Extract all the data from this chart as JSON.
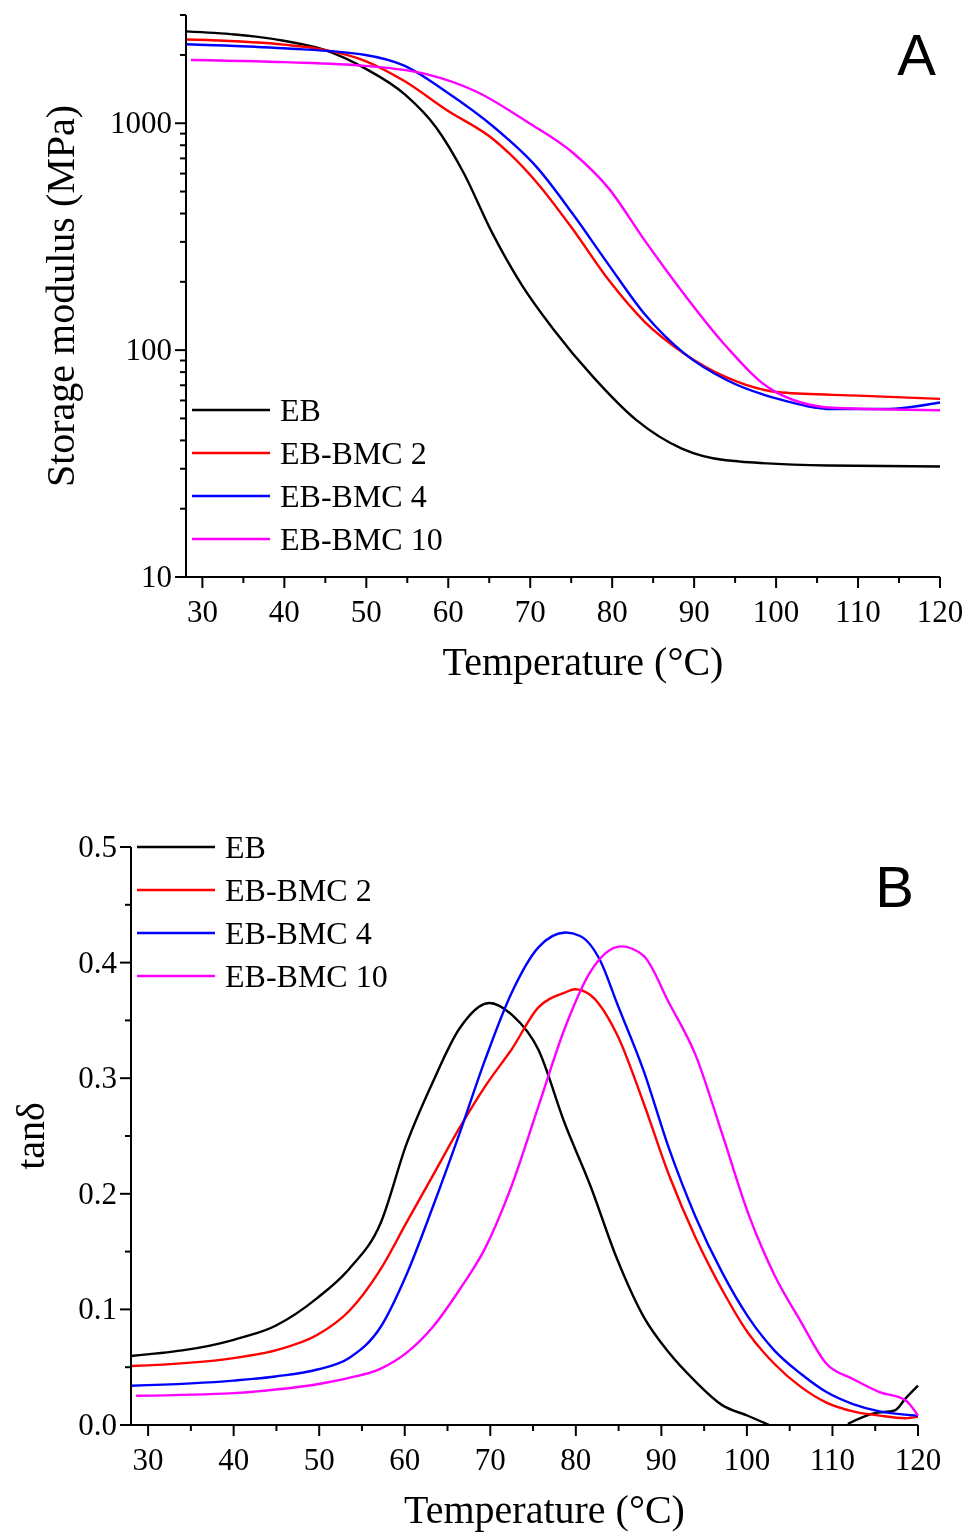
{
  "chart_data": [
    {
      "type": "line",
      "xlabel": "Temperature (°C)",
      "ylabel": "Storage modulus (MPa)",
      "annotations": [
        "A"
      ],
      "log": "y",
      "legend": "bottom left",
      "xlim": [
        28,
        120
      ],
      "ylim": [
        10,
        3000
      ],
      "xticks": [
        30,
        {
          "value": 35,
          "label": null
        },
        40,
        {
          "value": 45,
          "label": null
        },
        50,
        {
          "value": 55,
          "label": null
        },
        60,
        {
          "value": 65,
          "label": null
        },
        70,
        {
          "value": 75,
          "label": null
        },
        80,
        {
          "value": 85,
          "label": null
        },
        90,
        {
          "value": 95,
          "label": null
        },
        100,
        {
          "value": 105,
          "label": null
        },
        110,
        {
          "value": 115,
          "label": null
        },
        120
      ],
      "yticks": [
        10,
        {
          "value": 20,
          "label": null
        },
        {
          "value": 30,
          "label": null
        },
        {
          "value": 40,
          "label": null
        },
        {
          "value": 50,
          "label": null
        },
        {
          "value": 60,
          "label": null
        },
        {
          "value": 70,
          "label": null
        },
        {
          "value": 80,
          "label": null
        },
        {
          "value": 90,
          "label": null
        },
        100,
        {
          "value": 200,
          "label": null
        },
        {
          "value": 300,
          "label": null
        },
        {
          "value": 400,
          "label": null
        },
        {
          "value": 500,
          "label": null
        },
        {
          "value": 600,
          "label": null
        },
        {
          "value": 700,
          "label": null
        },
        {
          "value": 800,
          "label": null
        },
        {
          "value": 900,
          "label": null
        },
        1000,
        {
          "value": 2000,
          "label": null
        },
        {
          "value": 3000,
          "label": null
        }
      ],
      "series": [
        {
          "name": "EB",
          "color": "#000000",
          "x": [
            28,
            39.9,
            44.8,
            49.9,
            54.7,
            58.5,
            61.9,
            65.3,
            69,
            72.8,
            77.7,
            83,
            88.5,
            93.9,
            106.3,
            120
          ],
          "values": [
            2540,
            2310,
            2110,
            1740,
            1340,
            960,
            602,
            332,
            193,
            124,
            76,
            49,
            36.8,
            32.7,
            31,
            30.7
          ]
        },
        {
          "name": "EB-BMC 2",
          "color": "#ff0000",
          "x": [
            28,
            39.9,
            44.8,
            49.9,
            54.7,
            59.7,
            65.6,
            70.9,
            75.2,
            79.6,
            83.9,
            88.9,
            93.9,
            100.7,
            110,
            120
          ],
          "values": [
            2340,
            2220,
            2110,
            1880,
            1530,
            1150,
            844,
            543,
            341,
            203,
            134,
            96,
            76,
            65,
            63,
            61
          ]
        },
        {
          "name": "EB-BMC 4",
          "color": "#0000ff",
          "x": [
            28,
            39.9,
            49.9,
            54.7,
            59.7,
            65.6,
            70.9,
            75.2,
            79.6,
            83.9,
            88.9,
            93.9,
            100.7,
            106.9,
            113.2,
            120
          ],
          "values": [
            2230,
            2140,
            2000,
            1790,
            1380,
            960,
            634,
            398,
            237,
            145,
            96,
            74,
            60.3,
            55,
            55,
            58.8
          ]
        },
        {
          "name": "EB-BMC 10",
          "color": "#ff00ff",
          "x": [
            28.6,
            39.9,
            49.9,
            57.2,
            63.4,
            69.7,
            75.2,
            79.6,
            83.9,
            88.9,
            93.9,
            99.5,
            106.9,
            120
          ],
          "values": [
            1900,
            1860,
            1790,
            1650,
            1380,
            1010,
            741,
            515,
            307,
            174,
            104,
            66.8,
            55.7,
            54.3
          ]
        }
      ]
    },
    {
      "type": "line",
      "xlabel": "Temperature (°C)",
      "ylabel": "tanδ",
      "annotations": [
        "B"
      ],
      "legend": "top left",
      "xlim": [
        28,
        120
      ],
      "ylim": [
        0,
        0.5
      ],
      "xticks": [
        30,
        {
          "value": 35,
          "label": null
        },
        40,
        {
          "value": 45,
          "label": null
        },
        50,
        {
          "value": 55,
          "label": null
        },
        60,
        {
          "value": 65,
          "label": null
        },
        70,
        {
          "value": 75,
          "label": null
        },
        80,
        {
          "value": 85,
          "label": null
        },
        90,
        {
          "value": 95,
          "label": null
        },
        100,
        {
          "value": 105,
          "label": null
        },
        110,
        {
          "value": 115,
          "label": null
        },
        120
      ],
      "yticks": [
        {
          "value": 0,
          "label": "0.0"
        },
        {
          "value": 0.05,
          "label": null
        },
        0.1,
        {
          "value": 0.15,
          "label": null
        },
        0.2,
        {
          "value": 0.25,
          "label": null
        },
        0.3,
        {
          "value": 0.35,
          "label": null
        },
        0.4,
        {
          "value": 0.45,
          "label": null
        },
        0.5
      ],
      "series": [
        {
          "name": "EB",
          "color": "#000000",
          "x": [
            28,
            40,
            44.9,
            49.8,
            53.5,
            57.2,
            60.2,
            63.3,
            66.4,
            69.9,
            72.5,
            75.6,
            78.7,
            81.7,
            84.8,
            87.9,
            90.9,
            94,
            97.1,
            100.1,
            102.6,
            106,
            111.8,
            114.8,
            117.3,
            118.5,
            120
          ],
          "values": [
            0.0597,
            0.0737,
            0.0859,
            0.11,
            0.135,
            0.175,
            0.243,
            0.297,
            0.343,
            0.365,
            0.355,
            0.325,
            0.261,
            0.207,
            0.144,
            0.094,
            0.0624,
            0.0375,
            0.0172,
            0.008,
            0,
            null,
            0.001,
            0.01,
            0.0127,
            0.0226,
            0.034
          ]
        },
        {
          "name": "EB-BMC 2",
          "color": "#ff0000",
          "x": [
            28,
            40,
            44.9,
            49.8,
            53.5,
            57.2,
            60.2,
            63.3,
            66.4,
            69.4,
            72.5,
            75.6,
            78.7,
            79.9,
            81.7,
            84.8,
            87.9,
            90.9,
            94,
            97.1,
            100.1,
            103.2,
            106.3,
            109.3,
            112.4,
            115.5,
            118.5,
            120
          ],
          "values": [
            0.0511,
            0.0579,
            0.0646,
            0.078,
            0.0986,
            0.135,
            0.175,
            0.216,
            0.257,
            0.293,
            0.325,
            0.361,
            0.374,
            0.377,
            0.372,
            0.338,
            0.279,
            0.216,
            0.162,
            0.117,
            0.08,
            0.053,
            0.033,
            0.0194,
            0.0118,
            0.0081,
            0.0059,
            0.0072
          ]
        },
        {
          "name": "EB-BMC 4",
          "color": "#0000ff",
          "x": [
            28,
            40,
            44.9,
            49.8,
            53.5,
            57.2,
            60.2,
            63.3,
            66.4,
            69.4,
            72.5,
            75.6,
            78.8,
            80.5,
            82.9,
            84.8,
            87.9,
            90.9,
            94,
            97.1,
            100.1,
            103.2,
            106.3,
            109.3,
            112.4,
            115.5,
            118.5,
            120
          ],
          "values": [
            0.0339,
            0.0384,
            0.042,
            0.048,
            0.058,
            0.085,
            0.13,
            0.189,
            0.252,
            0.316,
            0.374,
            0.413,
            0.426,
            0.423,
            0.401,
            0.365,
            0.307,
            0.239,
            0.18,
            0.132,
            0.094,
            0.0646,
            0.0443,
            0.0285,
            0.0181,
            0.0118,
            0.009,
            0.0081
          ]
        },
        {
          "name": "EB-BMC 10",
          "color": "#ff00ff",
          "x": [
            28.6,
            40,
            44.9,
            49.8,
            53.5,
            57.2,
            60.2,
            63.3,
            66.4,
            69.4,
            72.5,
            75.6,
            78.7,
            81.7,
            85.3,
            87.9,
            90.9,
            94,
            97.1,
            100.1,
            103.2,
            106.3,
            109.3,
            112.4,
            115.5,
            118.5,
            120
          ],
          "values": [
            0.0253,
            0.0276,
            0.0307,
            0.0353,
            0.0407,
            0.0488,
            0.0624,
            0.085,
            0.117,
            0.153,
            0.207,
            0.275,
            0.343,
            0.392,
            0.414,
            0.406,
            0.365,
            0.32,
            0.252,
            0.184,
            0.13,
            0.0895,
            0.053,
            0.0398,
            0.0285,
            0.0217,
            0.0081
          ]
        }
      ]
    }
  ]
}
